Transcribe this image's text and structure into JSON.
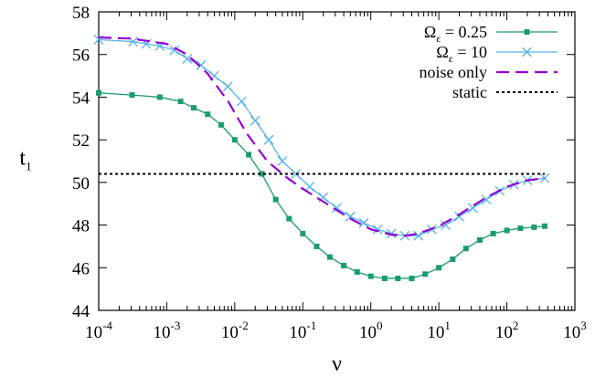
{
  "chart_data": {
    "type": "line",
    "title": "",
    "xlabel": "ν",
    "ylabel": {
      "base": "t",
      "sub": "1"
    },
    "x_scale": "log",
    "xlim": [
      0.0001,
      1000
    ],
    "ylim": [
      44,
      58
    ],
    "x_ticks": [
      {
        "base": "10",
        "exp": "-4",
        "value": 0.0001
      },
      {
        "base": "10",
        "exp": "-3",
        "value": 0.001
      },
      {
        "base": "10",
        "exp": "-2",
        "value": 0.01
      },
      {
        "base": "10",
        "exp": "-1",
        "value": 0.1
      },
      {
        "base": "10",
        "exp": "0",
        "value": 1
      },
      {
        "base": "10",
        "exp": "1",
        "value": 10
      },
      {
        "base": "10",
        "exp": "2",
        "value": 100
      },
      {
        "base": "10",
        "exp": "3",
        "value": 1000
      }
    ],
    "y_ticks": [
      "44",
      "46",
      "48",
      "50",
      "52",
      "54",
      "56",
      "58"
    ],
    "grid": false,
    "legend_position": "top-right",
    "series": [
      {
        "key": "omega_025",
        "name": "Ωε = 0.25",
        "legend": {
          "pre": "Ω",
          "sub": "ε",
          "post": " = 0.25"
        },
        "color": "#1a9c6e",
        "marker": "square",
        "dash": "",
        "x": [
          0.0001,
          0.00031,
          0.00079,
          0.0016,
          0.0025,
          0.004,
          0.0063,
          0.01,
          0.016,
          0.025,
          0.04,
          0.063,
          0.1,
          0.16,
          0.25,
          0.4,
          0.63,
          1,
          1.6,
          2.5,
          4,
          6.3,
          10,
          16,
          25,
          40,
          63,
          100,
          158,
          251,
          360
        ],
        "y": [
          54.2,
          54.1,
          54.0,
          53.8,
          53.5,
          53.2,
          52.7,
          52.0,
          51.3,
          50.4,
          49.2,
          48.3,
          47.6,
          47.0,
          46.5,
          46.1,
          45.8,
          45.6,
          45.5,
          45.5,
          45.5,
          45.7,
          46.0,
          46.4,
          46.9,
          47.3,
          47.6,
          47.75,
          47.85,
          47.9,
          47.95
        ]
      },
      {
        "key": "omega_10",
        "name": "Ωε = 10",
        "legend": {
          "pre": "Ω",
          "sub": "ε",
          "post": " = 10"
        },
        "color": "#56b4e9",
        "marker": "x",
        "dash": "",
        "x": [
          0.0001,
          0.00032,
          0.0005,
          0.00079,
          0.0013,
          0.002,
          0.0032,
          0.005,
          0.0079,
          0.0126,
          0.02,
          0.0316,
          0.05,
          0.079,
          0.126,
          0.2,
          0.316,
          0.5,
          0.79,
          1.26,
          2,
          3.16,
          5,
          7.9,
          12.6,
          20,
          31.6,
          50,
          79,
          126,
          200,
          360
        ],
        "y": [
          56.7,
          56.6,
          56.5,
          56.4,
          56.2,
          55.8,
          55.5,
          55.0,
          54.5,
          53.8,
          52.9,
          52.0,
          51.0,
          50.4,
          49.8,
          49.3,
          48.8,
          48.4,
          48.1,
          47.8,
          47.6,
          47.5,
          47.5,
          47.8,
          48.0,
          48.4,
          48.8,
          49.2,
          49.6,
          49.9,
          50.1,
          50.2
        ]
      },
      {
        "key": "noise_only",
        "name": "noise only",
        "legend": {
          "pre": "noise only",
          "sub": "",
          "post": ""
        },
        "color": "#9400d3",
        "marker": "none",
        "dash": "14,7",
        "x": [
          0.0001,
          0.0003,
          0.001,
          0.002,
          0.004,
          0.008,
          0.015,
          0.03,
          0.06,
          0.1,
          0.2,
          0.5,
          1,
          2,
          3.2,
          5,
          10,
          20,
          50,
          100,
          200,
          360
        ],
        "y": [
          56.8,
          56.75,
          56.5,
          56.0,
          55.1,
          53.8,
          52.3,
          51.0,
          50.2,
          49.7,
          49.1,
          48.3,
          47.8,
          47.55,
          47.5,
          47.6,
          47.95,
          48.5,
          49.3,
          49.8,
          50.1,
          50.2
        ]
      },
      {
        "key": "static",
        "name": "static",
        "legend": {
          "pre": "static",
          "sub": "",
          "post": ""
        },
        "color": "#000000",
        "marker": "none",
        "dash": "3,3",
        "x": [
          0.0001,
          360
        ],
        "y": [
          50.4,
          50.4
        ]
      }
    ]
  }
}
